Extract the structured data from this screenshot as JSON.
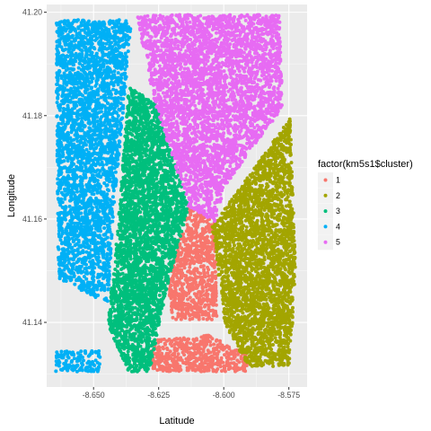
{
  "chart_data": {
    "type": "scatter",
    "title": "",
    "xlabel": "Latitude",
    "ylabel": "Longitude",
    "xlim": [
      -8.668,
      -8.568
    ],
    "ylim": [
      41.1275,
      41.2015
    ],
    "x_ticks": [
      -8.65,
      -8.625,
      -8.6,
      -8.575
    ],
    "x_tick_labels": [
      "-8.650",
      "-8.625",
      "-8.600",
      "-8.575"
    ],
    "y_ticks": [
      41.14,
      41.16,
      41.18,
      41.2
    ],
    "y_tick_labels": [
      "41.14",
      "41.16",
      "41.18",
      "41.20"
    ],
    "grid": true,
    "panel_background": "#ebebeb",
    "legend": {
      "title": "factor(km5s1$cluster)",
      "position": "right",
      "entries": [
        {
          "label": "1",
          "color": "#F8766D"
        },
        {
          "label": "2",
          "color": "#A3A500"
        },
        {
          "label": "3",
          "color": "#00BF7D"
        },
        {
          "label": "4",
          "color": "#00B0F6"
        },
        {
          "label": "5",
          "color": "#E76BF3"
        }
      ]
    },
    "series": [
      {
        "name": "1",
        "color": "#F8766D",
        "regions": [
          [
            [
              -8.6215,
              41.147
            ],
            [
              -8.6135,
              41.1625
            ],
            [
              -8.6035,
              41.1595
            ],
            [
              -8.6025,
              41.1405
            ],
            [
              -8.6195,
              41.1405
            ]
          ],
          [
            [
              -8.628,
              41.1305
            ],
            [
              -8.628,
              41.1365
            ],
            [
              -8.6055,
              41.1375
            ],
            [
              -8.5905,
              41.1335
            ],
            [
              -8.5905,
              41.1305
            ]
          ]
        ]
      },
      {
        "name": "2",
        "color": "#A3A500",
        "regions": [
          [
            [
              -8.6045,
              41.1585
            ],
            [
              -8.5745,
              41.1795
            ],
            [
              -8.5725,
              41.1505
            ],
            [
              -8.5745,
              41.1315
            ],
            [
              -8.5905,
              41.1315
            ],
            [
              -8.5995,
              41.1395
            ]
          ]
        ]
      },
      {
        "name": "3",
        "color": "#00BF7D",
        "regions": [
          [
            [
              -8.6365,
              41.1855
            ],
            [
              -8.6265,
              41.1825
            ],
            [
              -8.6185,
              41.1705
            ],
            [
              -8.6135,
              41.1625
            ],
            [
              -8.6215,
              41.1475
            ],
            [
              -8.6285,
              41.1305
            ],
            [
              -8.6365,
              41.1305
            ],
            [
              -8.6445,
              41.1395
            ],
            [
              -8.6405,
              41.1595
            ]
          ]
        ]
      },
      {
        "name": "4",
        "color": "#00B0F6",
        "regions": [
          [
            [
              -8.6645,
              41.1985
            ],
            [
              -8.6355,
              41.1985
            ],
            [
              -8.6385,
              41.1815
            ],
            [
              -8.6425,
              41.1605
            ],
            [
              -8.6445,
              41.1435
            ],
            [
              -8.6635,
              41.1485
            ]
          ],
          [
            [
              -8.6645,
              41.1305
            ],
            [
              -8.6475,
              41.1305
            ],
            [
              -8.6475,
              41.1345
            ],
            [
              -8.6645,
              41.1345
            ]
          ]
        ]
      },
      {
        "name": "5",
        "color": "#E76BF3",
        "regions": [
          [
            [
              -8.6335,
              41.1995
            ],
            [
              -8.5785,
              41.1995
            ],
            [
              -8.5775,
              41.1815
            ],
            [
              -8.5995,
              41.1665
            ],
            [
              -8.6035,
              41.1595
            ],
            [
              -8.6135,
              41.1625
            ],
            [
              -8.6265,
              41.1825
            ]
          ]
        ]
      }
    ]
  }
}
